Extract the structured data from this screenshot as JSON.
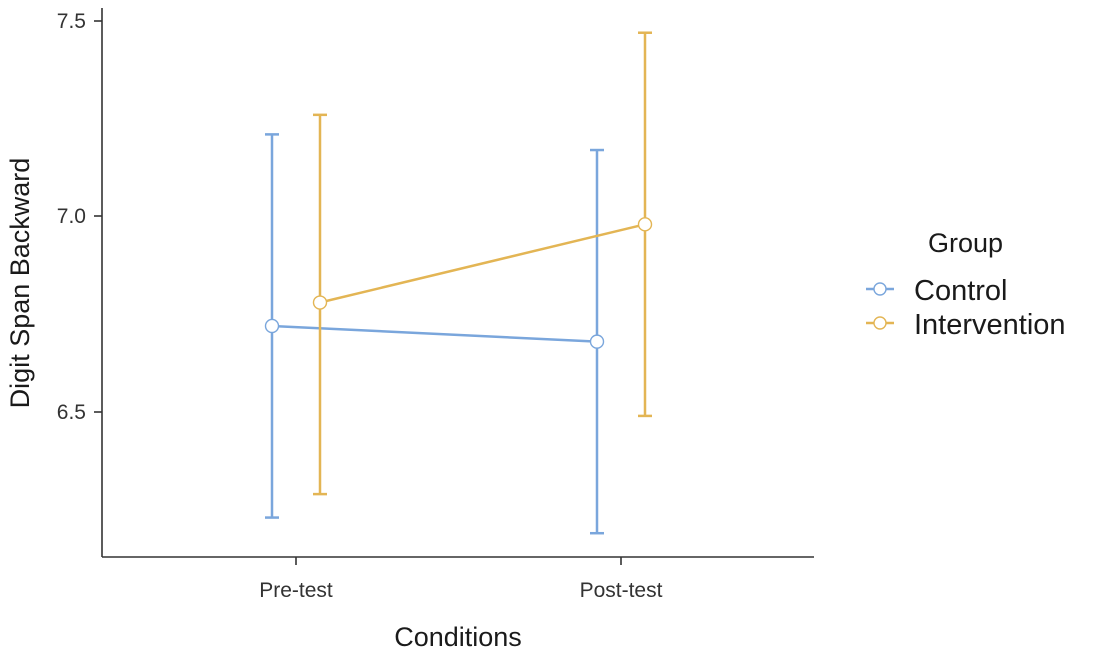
{
  "chart_data": {
    "type": "line",
    "xlabel": "Conditions",
    "ylabel": "Digit Span Backward",
    "categories": [
      "Pre-test",
      "Post-test"
    ],
    "yticks": [
      "6.5",
      "7.0",
      "7.5"
    ],
    "legend": {
      "title": "Group",
      "position": "right"
    },
    "series": [
      {
        "name": "Control",
        "color": "#7aa6dc",
        "values": [
          6.72,
          6.68
        ],
        "lower": [
          6.23,
          6.19
        ],
        "upper": [
          7.21,
          7.17
        ]
      },
      {
        "name": "Intervention",
        "color": "#e3b554",
        "values": [
          6.78,
          6.98
        ],
        "lower": [
          6.29,
          6.49
        ],
        "upper": [
          7.26,
          7.47
        ]
      }
    ],
    "grid": false
  }
}
